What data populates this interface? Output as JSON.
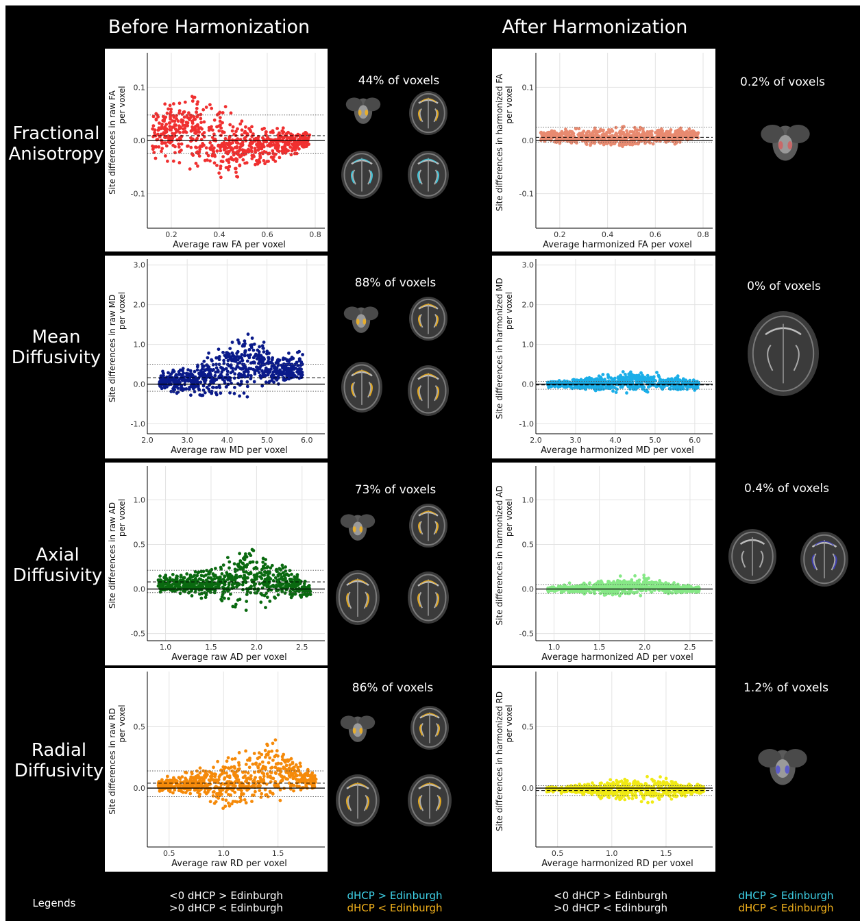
{
  "column_headers": {
    "before": "Before Harmonization",
    "after": "After Harmonization"
  },
  "row_labels": [
    {
      "line1": "Fractional",
      "line2": "Anisotropy"
    },
    {
      "line1": "Mean",
      "line2": "Diffusivity"
    },
    {
      "line1": "Axial",
      "line2": "Diffusivity"
    },
    {
      "line1": "Radial",
      "line2": "Diffusivity"
    }
  ],
  "voxel_percentages": {
    "before": [
      "44% of voxels",
      "88% of voxels",
      "73% of voxels",
      "86% of voxels"
    ],
    "after": [
      "0.2% of voxels",
      "0% of voxels",
      "0.4% of voxels",
      "1.2% of voxels"
    ]
  },
  "legends": {
    "title": "Legends",
    "plot_line1": "<0 dHCP > Edinburgh",
    "plot_line2": ">0 dHCP < Edinburgh",
    "map_line1": "dHCP > Edinburgh",
    "map_line2": "dHCP < Edinburgh",
    "map_color1": "#3fd2e8",
    "map_color2": "#f3b21c"
  },
  "colors": {
    "FA_raw": "#f03030",
    "FA_harm": "#e88a70",
    "MD_raw": "#0a1a8a",
    "MD_harm": "#1aaee8",
    "AD_raw": "#0a6a10",
    "AD_harm": "#86e886",
    "RD_raw": "#f58a0a",
    "RD_harm": "#f0ea14"
  },
  "chart_data": [
    {
      "id": "FA_raw",
      "type": "scatter",
      "xlabel": "Average raw FA per voxel",
      "ylabel_line1": "Site differences in raw FA",
      "ylabel_line2": "per voxel",
      "xticks": [
        0.2,
        0.4,
        0.6,
        0.8
      ],
      "xtick_labels": [
        "0.2",
        "0.4",
        "0.6",
        "0.8"
      ],
      "yticks": [
        -0.1,
        0.0,
        0.1
      ],
      "ytick_labels": [
        "-0.1",
        "0.0",
        "0.1"
      ],
      "xlim": [
        0.1,
        0.84
      ],
      "ylim": [
        -0.165,
        0.165
      ],
      "mean_diff": 0.009,
      "loa": [
        -0.024,
        0.048
      ],
      "cloud": [
        [
          0.12,
          -0.05,
          0.07
        ],
        [
          0.2,
          -0.055,
          0.09
        ],
        [
          0.3,
          -0.07,
          0.1
        ],
        [
          0.4,
          -0.09,
          0.08
        ],
        [
          0.5,
          -0.07,
          0.045
        ],
        [
          0.6,
          -0.05,
          0.03
        ],
        [
          0.7,
          -0.035,
          0.03
        ],
        [
          0.78,
          -0.02,
          0.02
        ]
      ]
    },
    {
      "id": "FA_harm",
      "type": "scatter",
      "xlabel": "Average harmonized FA per voxel",
      "ylabel_line1": "Site differences in harmonized FA",
      "ylabel_line2": "per voxel",
      "xticks": [
        0.2,
        0.4,
        0.6,
        0.8
      ],
      "xtick_labels": [
        "0.2",
        "0.4",
        "0.6",
        "0.8"
      ],
      "yticks": [
        -0.1,
        0.0,
        0.1
      ],
      "ytick_labels": [
        "-0.1",
        "0.0",
        "0.1"
      ],
      "xlim": [
        0.1,
        0.84
      ],
      "ylim": [
        -0.165,
        0.165
      ],
      "mean_diff": 0.006,
      "loa": [
        -0.003,
        0.025
      ],
      "cloud": [
        [
          0.12,
          -0.005,
          0.022
        ],
        [
          0.3,
          -0.015,
          0.028
        ],
        [
          0.45,
          -0.02,
          0.028
        ],
        [
          0.6,
          -0.012,
          0.03
        ],
        [
          0.78,
          -0.004,
          0.025
        ]
      ]
    },
    {
      "id": "MD_raw",
      "type": "scatter",
      "xlabel": "Average raw MD per voxel",
      "ylabel_line1": "Site differences in raw MD",
      "ylabel_line2": "per voxel",
      "xticks": [
        2.0,
        3.0,
        4.0,
        5.0,
        6.0
      ],
      "xtick_labels": [
        "2.0",
        "3.0",
        "4.0",
        "5.0",
        "6.0"
      ],
      "yticks": [
        -1.0,
        0.0,
        1.0,
        2.0,
        3.0
      ],
      "ytick_labels": [
        "-1.0",
        "0.0",
        "1.0",
        "2.0",
        "3.0"
      ],
      "xlim": [
        2.0,
        6.45
      ],
      "ylim": [
        -1.25,
        3.15
      ],
      "mean_diff": 0.16,
      "loa": [
        -0.18,
        0.5
      ],
      "cloud": [
        [
          2.3,
          -0.2,
          0.35
        ],
        [
          2.8,
          -0.3,
          0.45
        ],
        [
          3.3,
          -0.4,
          0.6
        ],
        [
          3.8,
          -0.55,
          1.1
        ],
        [
          4.3,
          -0.5,
          1.5
        ],
        [
          4.8,
          -0.25,
          1.3
        ],
        [
          5.3,
          -0.1,
          0.8
        ],
        [
          5.9,
          0.0,
          0.9
        ]
      ]
    },
    {
      "id": "MD_harm",
      "type": "scatter",
      "xlabel": "Average harmonized MD per voxel",
      "ylabel_line1": "Site differences in harmonized MD",
      "ylabel_line2": "per voxel",
      "xticks": [
        2.0,
        3.0,
        4.0,
        5.0,
        6.0
      ],
      "xtick_labels": [
        "2.0",
        "3.0",
        "4.0",
        "5.0",
        "6.0"
      ],
      "yticks": [
        -1.0,
        0.0,
        1.0,
        2.0,
        3.0
      ],
      "ytick_labels": [
        "-1.0",
        "0.0",
        "1.0",
        "2.0",
        "3.0"
      ],
      "xlim": [
        2.0,
        6.45
      ],
      "ylim": [
        -1.25,
        3.15
      ],
      "mean_diff": -0.02,
      "loa": [
        -0.13,
        0.07
      ],
      "cloud": [
        [
          2.3,
          -0.12,
          0.1
        ],
        [
          3.0,
          -0.18,
          0.18
        ],
        [
          3.8,
          -0.25,
          0.3
        ],
        [
          4.5,
          -0.25,
          0.38
        ],
        [
          5.2,
          -0.2,
          0.3
        ],
        [
          6.1,
          -0.2,
          0.15
        ]
      ]
    },
    {
      "id": "AD_raw",
      "type": "scatter",
      "xlabel": "Average raw AD per voxel",
      "ylabel_line1": "Site differences in raw AD",
      "ylabel_line2": "per voxel",
      "xticks": [
        1.0,
        1.5,
        2.0,
        2.5
      ],
      "xtick_labels": [
        "1.0",
        "1.5",
        "2.0",
        "2.5"
      ],
      "yticks": [
        -0.5,
        0.0,
        0.5,
        1.0
      ],
      "ytick_labels": [
        "-0.5",
        "0.0",
        "0.5",
        "1.0"
      ],
      "xlim": [
        0.8,
        2.75
      ],
      "ylim": [
        -0.58,
        1.38
      ],
      "mean_diff": 0.08,
      "loa": [
        -0.04,
        0.21
      ],
      "cloud": [
        [
          0.92,
          -0.04,
          0.15
        ],
        [
          1.2,
          -0.1,
          0.2
        ],
        [
          1.5,
          -0.18,
          0.3
        ],
        [
          1.75,
          -0.25,
          0.45
        ],
        [
          1.95,
          -0.25,
          0.55
        ],
        [
          2.15,
          -0.2,
          0.45
        ],
        [
          2.35,
          -0.15,
          0.25
        ],
        [
          2.6,
          -0.1,
          0.05
        ]
      ]
    },
    {
      "id": "AD_harm",
      "type": "scatter",
      "xlabel": "Average harmonized AD per voxel",
      "ylabel_line1": "Site differences in harmonized AD",
      "ylabel_line2": "per voxel",
      "xticks": [
        1.0,
        1.5,
        2.0,
        2.5
      ],
      "xtick_labels": [
        "1.0",
        "1.5",
        "2.0",
        "2.5"
      ],
      "yticks": [
        -0.5,
        0.0,
        0.5,
        1.0
      ],
      "ytick_labels": [
        "-0.5",
        "0.0",
        "0.5",
        "1.0"
      ],
      "xlim": [
        0.8,
        2.75
      ],
      "ylim": [
        -0.58,
        1.38
      ],
      "mean_diff": 0.0,
      "loa": [
        -0.05,
        0.05
      ],
      "cloud": [
        [
          0.92,
          -0.04,
          0.04
        ],
        [
          1.3,
          -0.07,
          0.08
        ],
        [
          1.7,
          -0.1,
          0.14
        ],
        [
          2.0,
          -0.09,
          0.18
        ],
        [
          2.3,
          -0.07,
          0.1
        ],
        [
          2.6,
          -0.05,
          0.04
        ]
      ]
    },
    {
      "id": "RD_raw",
      "type": "scatter",
      "xlabel": "Average raw RD per voxel",
      "ylabel_line1": "Site differences in raw RD",
      "ylabel_line2": "per voxel",
      "xticks": [
        0.5,
        1.0,
        1.5
      ],
      "xtick_labels": [
        "0.5",
        "1.0",
        "1.5"
      ],
      "yticks": [
        0.0,
        0.5
      ],
      "ytick_labels": [
        "0.0",
        "0.5"
      ],
      "xlim": [
        0.3,
        1.93
      ],
      "ylim": [
        -0.48,
        0.95
      ],
      "mean_diff": 0.04,
      "loa": [
        -0.07,
        0.14
      ],
      "cloud": [
        [
          0.4,
          -0.04,
          0.08
        ],
        [
          0.7,
          -0.08,
          0.15
        ],
        [
          1.0,
          -0.18,
          0.28
        ],
        [
          1.2,
          -0.25,
          0.38
        ],
        [
          1.4,
          -0.22,
          0.45
        ],
        [
          1.6,
          -0.1,
          0.35
        ],
        [
          1.85,
          -0.02,
          0.12
        ]
      ]
    },
    {
      "id": "RD_harm",
      "type": "scatter",
      "xlabel": "Average harmonized RD per voxel",
      "ylabel_line1": "Site differences in harmonized RD",
      "ylabel_line2": "per voxel",
      "xticks": [
        0.5,
        1.0,
        1.5
      ],
      "xtick_labels": [
        "0.5",
        "1.0",
        "1.5"
      ],
      "yticks": [
        0.0,
        0.5
      ],
      "ytick_labels": [
        "0.0",
        "0.5"
      ],
      "xlim": [
        0.3,
        1.93
      ],
      "ylim": [
        -0.48,
        0.95
      ],
      "mean_diff": -0.02,
      "loa": [
        -0.06,
        0.02
      ],
      "cloud": [
        [
          0.4,
          -0.04,
          0.02
        ],
        [
          0.8,
          -0.07,
          0.05
        ],
        [
          1.1,
          -0.12,
          0.09
        ],
        [
          1.35,
          -0.14,
          0.13
        ],
        [
          1.6,
          -0.1,
          0.08
        ],
        [
          1.85,
          -0.05,
          0.03
        ]
      ]
    }
  ]
}
